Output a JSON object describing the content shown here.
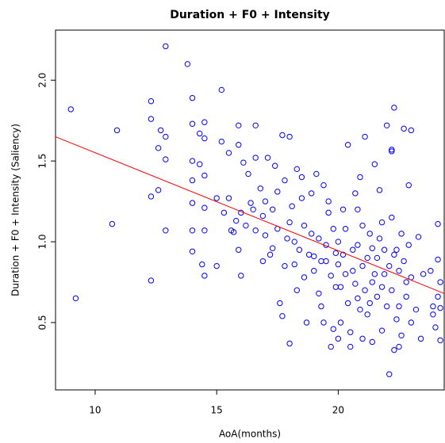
{
  "chart_data": {
    "type": "scatter",
    "title": "Duration + F0 + Intensity",
    "x_label": "AoA(months)",
    "y_label": "Duration + F0 + Intensity (Saliency)",
    "xlim": [
      8.37,
      24.36
    ],
    "ylim": [
      0.083,
      2.31
    ],
    "xticks": [
      10,
      15,
      20
    ],
    "yticks": [
      {
        "value": 0.5,
        "label": "0.5"
      },
      {
        "value": 1.0,
        "label": "1.0"
      },
      {
        "value": 1.5,
        "label": "1.5"
      },
      {
        "value": 2.0,
        "label": "2.0"
      }
    ],
    "series": [
      {
        "color": "#0000ff",
        "x": [
          9.0,
          9.2,
          10.7,
          10.9,
          12.3,
          12.3,
          12.3,
          12.3,
          12.6,
          12.6,
          12.7,
          12.9,
          12.9,
          12.9,
          12.9,
          13.8,
          14.0,
          14.0,
          14.0,
          14.0,
          14.0,
          14.0,
          14.0,
          14.3,
          14.3,
          14.4,
          14.5,
          14.5,
          14.5,
          14.5,
          14.5,
          14.5,
          15.0,
          15.0,
          15.2,
          15.2,
          15.3,
          15.5,
          15.5,
          15.6,
          15.7,
          15.8,
          15.9,
          15.9,
          15.9,
          16.0,
          16.0,
          16.1,
          16.3,
          16.4,
          16.6,
          16.6,
          16.6,
          16.8,
          16.9,
          16.9,
          17.0,
          17.1,
          17.3,
          17.3,
          17.4,
          17.5,
          17.6,
          17.7,
          17.7,
          17.8,
          17.9,
          18.0,
          18.0,
          18.1,
          18.2,
          18.3,
          18.3,
          18.5,
          18.6,
          18.7,
          18.8,
          18.9,
          19.0,
          19.1,
          19.2,
          19.3,
          19.4,
          19.5,
          19.6,
          19.7,
          19.8,
          19.9,
          20.0,
          20.1,
          20.2,
          20.3,
          20.4,
          20.5,
          20.6,
          20.7,
          20.8,
          20.9,
          21.0,
          21.1,
          21.2,
          21.3,
          21.4,
          21.5,
          21.6,
          21.7,
          21.8,
          21.9,
          22.0,
          22.1,
          22.2,
          22.2,
          22.3,
          22.3,
          22.4,
          22.5,
          22.6,
          22.7,
          22.8,
          22.9,
          23.0,
          23.0,
          23.3,
          23.4,
          23.5,
          23.8,
          23.9,
          24.0,
          24.1,
          24.1,
          24.2,
          24.2,
          24.2,
          24.1,
          23.9,
          18.4,
          18.6,
          18.9,
          19.0,
          19.2,
          19.3,
          19.5,
          19.7,
          19.9,
          20.0,
          20.1,
          20.2,
          20.3,
          20.4,
          20.6,
          20.7,
          20.8,
          20.9,
          21.0,
          21.1,
          21.2,
          21.3,
          21.4,
          21.5,
          21.6,
          21.7,
          21.8,
          21.9,
          22.0,
          22.1,
          22.2,
          22.3,
          22.4,
          22.5,
          22.6,
          22.7,
          22.8,
          22.9,
          23.0,
          23.2,
          19.4,
          19.8,
          20.5,
          21.0,
          17.2,
          17.5,
          17.8,
          18.0,
          18.2,
          17.0,
          16.5,
          16.2,
          18.5,
          19.6,
          20.8,
          21.8,
          22.2,
          20.0,
          21.4,
          22.5
        ],
        "y": [
          1.82,
          0.65,
          1.11,
          1.69,
          1.87,
          1.76,
          1.28,
          0.76,
          1.32,
          1.58,
          1.69,
          2.21,
          1.65,
          1.51,
          1.07,
          2.1,
          1.89,
          1.73,
          1.5,
          1.38,
          1.24,
          1.07,
          0.94,
          1.67,
          1.48,
          0.86,
          1.74,
          1.64,
          1.41,
          1.21,
          1.07,
          0.79,
          1.27,
          0.85,
          1.94,
          1.62,
          1.18,
          1.55,
          1.27,
          1.07,
          1.06,
          1.13,
          1.72,
          1.6,
          0.95,
          1.18,
          0.79,
          1.49,
          1.42,
          1.24,
          1.72,
          1.52,
          1.07,
          1.33,
          1.16,
          0.88,
          1.04,
          1.52,
          1.2,
          0.96,
          1.47,
          1.31,
          0.62,
          1.66,
          0.54,
          1.38,
          1.02,
          1.65,
          0.37,
          1.22,
          0.86,
          1.45,
          0.7,
          1.27,
          1.1,
          0.5,
          0.92,
          1.3,
          0.82,
          1.42,
          1.02,
          0.6,
          1.35,
          0.88,
          1.18,
          0.35,
          1.08,
          0.72,
          1.0,
          0.5,
          1.2,
          0.8,
          1.6,
          0.35,
          0.95,
          1.3,
          0.65,
          1.4,
          0.85,
          1.65,
          0.55,
          1.05,
          0.75,
          1.48,
          0.9,
          1.32,
          0.45,
          0.8,
          1.72,
          0.18,
          1.57,
          1.56,
          1.83,
          0.33,
          0.95,
          0.6,
          1.05,
          1.7,
          0.75,
          1.35,
          1.69,
          0.5,
          1.03,
          0.4,
          0.8,
          0.82,
          0.6,
          0.47,
          1.11,
          0.89,
          0.75,
          0.59,
          0.39,
          0.66,
          0.55,
          0.95,
          0.78,
          1.05,
          0.91,
          0.68,
          0.88,
          0.98,
          0.79,
          0.93,
          0.86,
          0.72,
          0.92,
          1.08,
          0.62,
          0.82,
          0.74,
          0.98,
          0.58,
          1.1,
          0.7,
          0.9,
          0.62,
          0.96,
          0.8,
          0.66,
          1.02,
          0.72,
          0.95,
          0.6,
          0.85,
          0.7,
          0.92,
          0.52,
          0.82,
          0.42,
          0.88,
          0.66,
          0.98,
          0.78,
          0.58,
          0.5,
          0.46,
          0.44,
          0.4,
          0.92,
          1.08,
          0.85,
          1.12,
          1.0,
          1.25,
          1.2,
          1.1,
          1.4,
          1.25,
          1.2,
          1.12,
          1.15,
          0.4,
          0.38,
          0.35
        ]
      }
    ],
    "fit_line": {
      "color": "#ff0000",
      "x": [
        8.37,
        24.36
      ],
      "y": [
        1.65,
        0.68
      ]
    }
  }
}
